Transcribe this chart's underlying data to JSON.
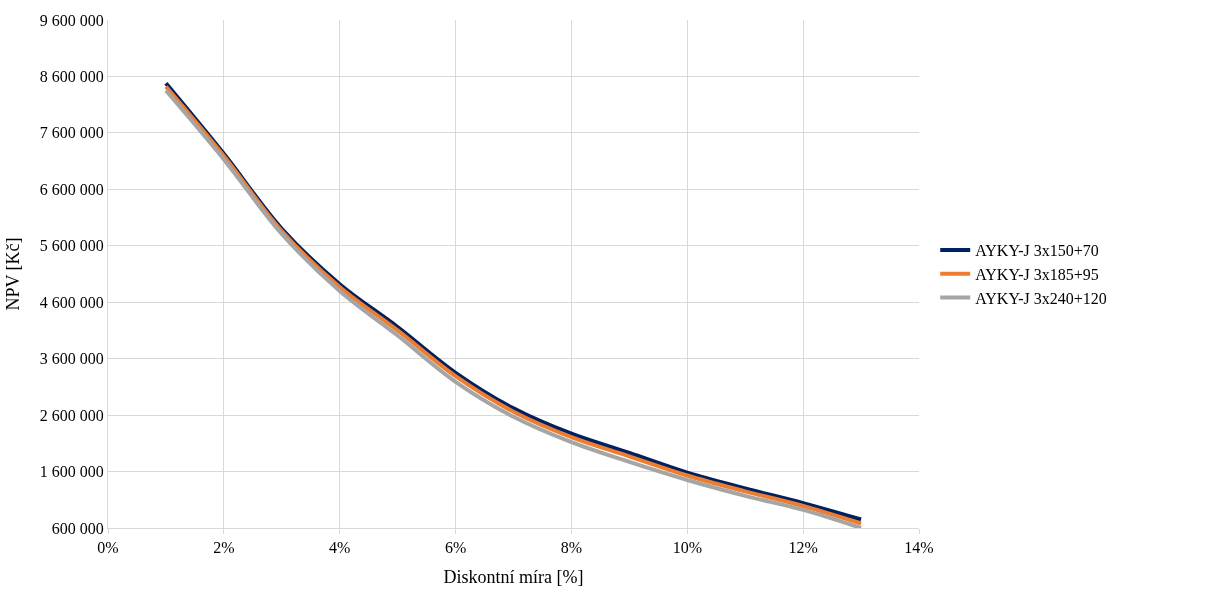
{
  "chart_data": {
    "type": "line",
    "xlabel": "Diskontní míra [%]",
    "ylabel": "NPV [Kč]",
    "x": [
      1,
      2,
      3,
      4,
      5,
      6,
      7,
      8,
      9,
      10,
      11,
      12,
      13
    ],
    "series": [
      {
        "name": "AYKY-J 3x150+70",
        "color": "#002060",
        "values": [
          8480000,
          7230000,
          5900000,
          4920000,
          4160000,
          3350000,
          2720000,
          2270000,
          1930000,
          1580000,
          1300000,
          1040000,
          750000
        ]
      },
      {
        "name": "AYKY-J 3x185+95",
        "color": "#ed7d31",
        "values": [
          8420000,
          7190000,
          5860000,
          4870000,
          4100000,
          3290000,
          2660000,
          2210000,
          1870000,
          1530000,
          1250000,
          990000,
          680000
        ]
      },
      {
        "name": "AYKY-J 3x240+120",
        "color": "#a5a5a5",
        "values": [
          8350000,
          7130000,
          5810000,
          4800000,
          4010000,
          3190000,
          2570000,
          2120000,
          1770000,
          1450000,
          1170000,
          920000,
          600000
        ]
      }
    ],
    "xlim": [
      0,
      14
    ],
    "xticks": [
      {
        "value": 0,
        "label": "0%"
      },
      {
        "value": 2,
        "label": "2%"
      },
      {
        "value": 4,
        "label": "4%"
      },
      {
        "value": 6,
        "label": "6%"
      },
      {
        "value": 8,
        "label": "8%"
      },
      {
        "value": 10,
        "label": "10%"
      },
      {
        "value": 12,
        "label": "12%"
      },
      {
        "value": 14,
        "label": "14%"
      }
    ],
    "ylim": [
      600000,
      9600000
    ],
    "yticks": [
      {
        "value": 600000,
        "label": "600 000"
      },
      {
        "value": 1600000,
        "label": "1 600 000"
      },
      {
        "value": 2600000,
        "label": "2 600 000"
      },
      {
        "value": 3600000,
        "label": "3 600 000"
      },
      {
        "value": 4600000,
        "label": "4 600 000"
      },
      {
        "value": 5600000,
        "label": "5 600 000"
      },
      {
        "value": 6600000,
        "label": "6 600 000"
      },
      {
        "value": 7600000,
        "label": "7 600 000"
      },
      {
        "value": 8600000,
        "label": "8 600 000"
      },
      {
        "value": 9600000,
        "label": "9 600 000"
      }
    ],
    "grid": true,
    "legend": "right",
    "marker": "none",
    "line_style": "solid"
  }
}
